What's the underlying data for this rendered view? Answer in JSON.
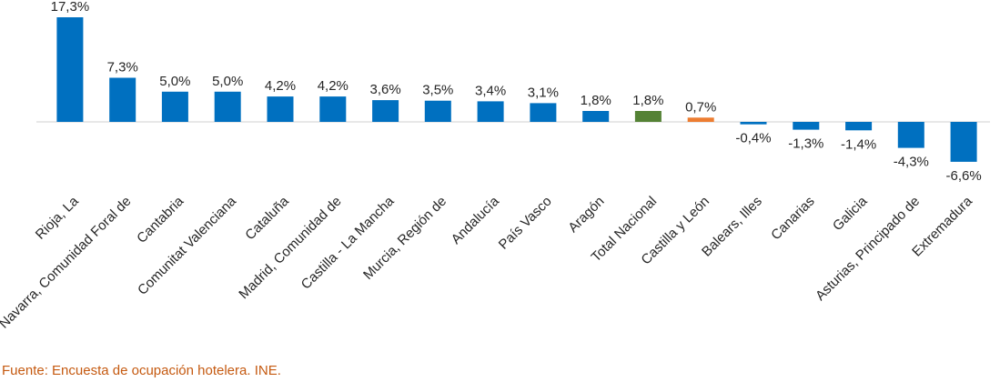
{
  "chart_data": {
    "type": "bar",
    "categories": [
      "Rioja, La",
      "Navarra, Comunidad Foral de",
      "Cantabria",
      "Comunitat Valenciana",
      "Cataluña",
      "Madrid, Comunidad de",
      "Castilla - La Mancha",
      "Murcia, Región de",
      "Andalucía",
      "País Vasco",
      "Aragón",
      "Total Nacional",
      "Castilla y León",
      "Balears, Illes",
      "Canarias",
      "Galicia",
      "Asturias, Principado de",
      "Extremadura"
    ],
    "values": [
      17.3,
      7.3,
      5.0,
      5.0,
      4.2,
      4.2,
      3.6,
      3.5,
      3.4,
      3.1,
      1.8,
      1.8,
      0.7,
      -0.4,
      -1.3,
      -1.4,
      -4.3,
      -6.6
    ],
    "data_labels": [
      "17,3%",
      "7,3%",
      "5,0%",
      "5,0%",
      "4,2%",
      "4,2%",
      "3,6%",
      "3,5%",
      "3,4%",
      "3,1%",
      "1,8%",
      "1,8%",
      "0,7%",
      "-0,4%",
      "-1,3%",
      "-1,4%",
      "-4,3%",
      "-6,6%"
    ],
    "bar_colors": [
      "#0070c0",
      "#0070c0",
      "#0070c0",
      "#0070c0",
      "#0070c0",
      "#0070c0",
      "#0070c0",
      "#0070c0",
      "#0070c0",
      "#0070c0",
      "#0070c0",
      "#548235",
      "#ed7d31",
      "#0070c0",
      "#0070c0",
      "#0070c0",
      "#0070c0",
      "#0070c0"
    ],
    "title": "",
    "xlabel": "",
    "ylabel": "",
    "ylim": [
      -6.6,
      17.3
    ],
    "grid": false,
    "legend": "none"
  },
  "source_note": "Fuente: Encuesta de ocupación hotelera. INE."
}
